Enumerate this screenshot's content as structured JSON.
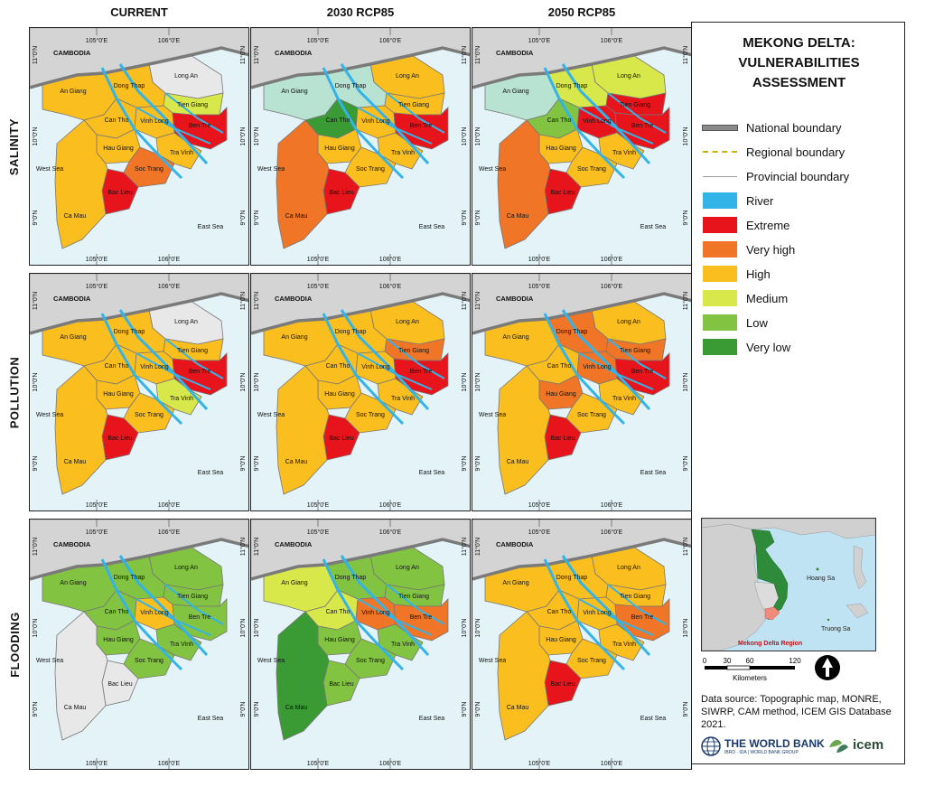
{
  "columns": [
    "CURRENT",
    "2030 RCP85",
    "2050 RCP85"
  ],
  "rows": [
    "SALINITY",
    "POLLUTION",
    "FLOODING"
  ],
  "map_labels": {
    "cambodia": "CAMBODIA",
    "west_sea": "West Sea",
    "east_sea": "East Sea",
    "lon_105": "105°0'E",
    "lon_106": "106°0'E",
    "lat_11": "11°0'N",
    "lat_10": "10°0'N",
    "lat_9": "9°0'N"
  },
  "provinces": [
    "Long An",
    "Dong Thap",
    "An Giang",
    "Tien Giang",
    "Can Tho",
    "Vinh Long",
    "Ben Tre",
    "Hau Giang",
    "Tra Vinh",
    "Soc Trang",
    "Bac Lieu",
    "Ca Mau"
  ],
  "maps": [
    [
      "gray",
      "high",
      "high",
      "medium",
      "high",
      "high",
      "extreme",
      "high",
      "high",
      "veryhigh",
      "extreme",
      "high"
    ],
    [
      "high",
      "lowlight",
      "lowlight",
      "high",
      "verylow",
      "high",
      "extreme",
      "high",
      "high",
      "high",
      "extreme",
      "veryhigh"
    ],
    [
      "medium",
      "medium",
      "lowlight",
      "extreme",
      "low",
      "extreme",
      "extreme",
      "high",
      "high",
      "high",
      "extreme",
      "veryhigh"
    ],
    [
      "gray",
      "high",
      "high",
      "high",
      "high",
      "high",
      "extreme",
      "high",
      "medium",
      "high",
      "extreme",
      "high"
    ],
    [
      "high",
      "high",
      "high",
      "veryhigh",
      "high",
      "high",
      "extreme",
      "high",
      "high",
      "high",
      "extreme",
      "high"
    ],
    [
      "high",
      "veryhigh",
      "high",
      "veryhigh",
      "high",
      "veryhigh",
      "extreme",
      "veryhigh",
      "high",
      "high",
      "extreme",
      "high"
    ],
    [
      "low",
      "low",
      "low",
      "low",
      "low",
      "high",
      "low",
      "low",
      "low",
      "low",
      "gray",
      "gray"
    ],
    [
      "low",
      "low",
      "medium",
      "low",
      "medium",
      "veryhigh",
      "veryhigh",
      "low",
      "low",
      "low",
      "low",
      "verylow"
    ],
    [
      "high",
      "high",
      "high",
      "high",
      "high",
      "high",
      "veryhigh",
      "high",
      "high",
      "high",
      "extreme",
      "high"
    ]
  ],
  "legend": {
    "title": "MEKONG DELTA: VULNERABILITIES ASSESSMENT",
    "lines": [
      {
        "label": "National boundary"
      },
      {
        "label": "Regional boundary"
      },
      {
        "label": "Provincial boundary"
      }
    ],
    "classes": [
      {
        "key": "river",
        "label": "River",
        "color": "#33b4e8"
      },
      {
        "key": "extreme",
        "label": "Extreme",
        "color": "#e8141c"
      },
      {
        "key": "veryhigh",
        "label": "Very high",
        "color": "#f07526"
      },
      {
        "key": "high",
        "label": "High",
        "color": "#fbbe1f"
      },
      {
        "key": "medium",
        "label": "Medium",
        "color": "#d8e74a"
      },
      {
        "key": "low",
        "label": "Low",
        "color": "#82c341"
      },
      {
        "key": "verylow",
        "label": "Very low",
        "color": "#3a9b35"
      }
    ]
  },
  "extra_colors": {
    "lowlight": "#b8e2d2",
    "gray": "#e8e8e8",
    "sea": "#e3f3f8",
    "land": "#d4d4d4"
  },
  "inset": {
    "label": "Mekong Delta Region",
    "hoang_sa": "Hoang Sa",
    "truong_sa": "Truong Sa"
  },
  "scale": {
    "ticks": [
      "0",
      "30",
      "60",
      "120"
    ],
    "unit": "Kilometers"
  },
  "source": "Data source: Topographic map, MONRE, SIWRP, CAM method, ICEM GIS Database 2021.",
  "logos": {
    "worldbank": "THE WORLD BANK",
    "worldbank_sub": "IBRD · IDA | WORLD BANK GROUP",
    "icem": "icem"
  }
}
